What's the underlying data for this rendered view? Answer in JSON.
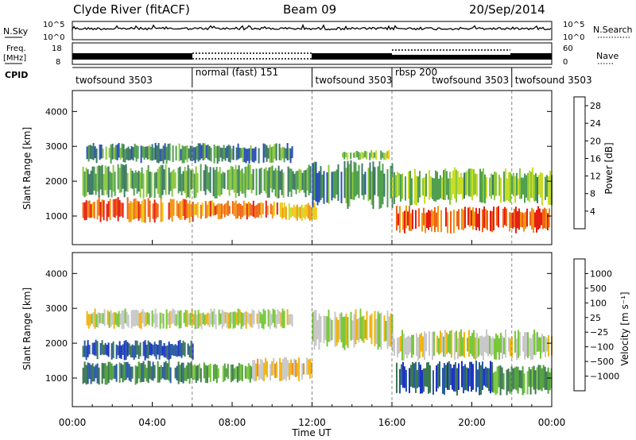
{
  "header": {
    "station": "Clyde River (fitACF)",
    "beam": "Beam 09",
    "date": "20/Sep/2014"
  },
  "top_panels": {
    "nsky_label": "N.Sky",
    "nsky_ticks": [
      "10^5",
      "10^0"
    ],
    "nsearch_label": "N.Search",
    "nsearch_ticks": [
      "10^5",
      "10^0"
    ],
    "freq_label_1": "Freq.",
    "freq_label_2": "[MHz]",
    "freq_ticks": [
      "18",
      "8"
    ],
    "nave_label": "Nave",
    "nave_ticks": [
      "60",
      "0"
    ],
    "cpid_label": "CPID",
    "cpid_segments": [
      {
        "name": "twofsound 3503",
        "start": 0,
        "end": 6
      },
      {
        "name": "normal (fast) 151",
        "start": 6,
        "end": 12
      },
      {
        "name": "twofsound 3503",
        "start": 12,
        "end": 16
      },
      {
        "name": "rbsp 200",
        "start": 16,
        "end": 22
      },
      {
        "name": "twofsound 3503",
        "start": 22,
        "end": 24
      }
    ],
    "rbsp_subsegment": {
      "name": "twofsound 3503",
      "start": 18
    }
  },
  "chart_data": [
    {
      "type": "heatmap",
      "title": "",
      "xlabel": "Time UT",
      "ylabel": "Slant Range [km]",
      "xlim": [
        0,
        24
      ],
      "ylim": [
        180,
        4600
      ],
      "x_ticks": [
        "00:00",
        "04:00",
        "08:00",
        "12:00",
        "16:00",
        "20:00",
        "00:00"
      ],
      "y_ticks": [
        1000,
        2000,
        3000,
        4000
      ],
      "colorbar": {
        "label": "Power [dB]",
        "ticks": [
          4,
          8,
          12,
          16,
          20,
          24,
          28
        ],
        "range": [
          0,
          30
        ],
        "colors": [
          "#1428e6",
          "#2850b4",
          "#3c7864",
          "#50a050",
          "#8cc83c",
          "#c8dc28",
          "#f0c814",
          "#f09614",
          "#f06414",
          "#e61e14"
        ]
      },
      "bands": [
        {
          "t0": 0.5,
          "t1": 6.0,
          "r0": 800,
          "r1": 1550,
          "level": 26
        },
        {
          "t0": 6.0,
          "t1": 10.5,
          "r0": 900,
          "r1": 1450,
          "level": 25
        },
        {
          "t0": 10.5,
          "t1": 12.2,
          "r0": 850,
          "r1": 1400,
          "level": 20
        },
        {
          "t0": 16.2,
          "t1": 24.0,
          "r0": 500,
          "r1": 1300,
          "level": 27
        },
        {
          "t0": 0.5,
          "t1": 12.0,
          "r0": 1500,
          "r1": 2500,
          "level": 10
        },
        {
          "t0": 12.0,
          "t1": 16.0,
          "r0": 1200,
          "r1": 2600,
          "level": 8
        },
        {
          "t0": 13.5,
          "t1": 16.0,
          "r0": 2600,
          "r1": 2900,
          "level": 14
        },
        {
          "t0": 16.0,
          "t1": 24.0,
          "r0": 1300,
          "r1": 2400,
          "level": 13
        },
        {
          "t0": 0.7,
          "t1": 11.0,
          "r0": 2500,
          "r1": 3100,
          "level": 8
        }
      ]
    },
    {
      "type": "heatmap",
      "title": "",
      "xlabel": "Time UT",
      "ylabel": "Slant Range [km]",
      "xlim": [
        0,
        24
      ],
      "ylim": [
        180,
        4600
      ],
      "x_ticks": [
        "00:00",
        "04:00",
        "08:00",
        "12:00",
        "16:00",
        "20:00",
        "00:00"
      ],
      "y_ticks": [
        1000,
        2000,
        3000,
        4000
      ],
      "colorbar": {
        "label": "Velocity [m s⁻¹]",
        "ticks": [
          "1000",
          "500",
          "100",
          "25",
          "−25",
          "−100",
          "−500",
          "−1000"
        ],
        "colors": [
          "#1e32c8",
          "#285aa0",
          "#3c7850",
          "#50a03c",
          "#78c83c",
          "#c8c8c8",
          "#f0b414",
          "#f08c14",
          "#f05014",
          "#e61414"
        ]
      },
      "bands": [
        {
          "t0": 0.5,
          "t1": 6.0,
          "r0": 800,
          "r1": 1500,
          "level": 2
        },
        {
          "t0": 0.5,
          "t1": 6.0,
          "r0": 1500,
          "r1": 2100,
          "level": 1
        },
        {
          "t0": 6.0,
          "t1": 9.0,
          "r0": 850,
          "r1": 1450,
          "level": 3
        },
        {
          "t0": 9.0,
          "t1": 12.0,
          "r0": 900,
          "r1": 1600,
          "level": 6
        },
        {
          "t0": 12.0,
          "t1": 16.0,
          "r0": 1800,
          "r1": 3000,
          "level": 5
        },
        {
          "t0": 16.2,
          "t1": 21.0,
          "r0": 500,
          "r1": 1500,
          "level": 1
        },
        {
          "t0": 21.0,
          "t1": 24.0,
          "r0": 500,
          "r1": 1400,
          "level": 3
        },
        {
          "t0": 16.0,
          "t1": 24.0,
          "r0": 1500,
          "r1": 2400,
          "level": 5
        },
        {
          "t0": 0.7,
          "t1": 11.0,
          "r0": 2400,
          "r1": 3000,
          "level": 5
        }
      ]
    }
  ]
}
